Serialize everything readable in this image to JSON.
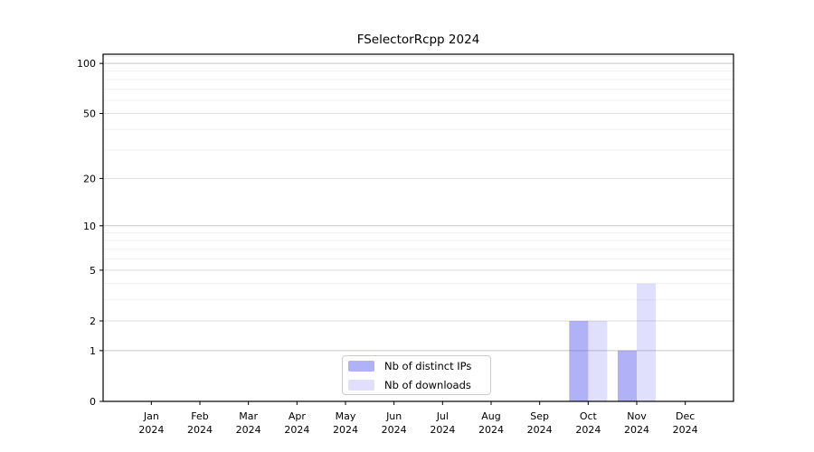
{
  "title": "FSelectorRcpp 2024",
  "colors": {
    "bar_base": "#5252ed",
    "bar_distinct_ips": "rgba(82,82,237,0.45)",
    "bar_downloads": "rgba(82,82,237,0.18)",
    "grid_decade": "#c8c8c8",
    "grid_major": "#dedede",
    "grid_minor": "#f0f0f0",
    "axis": "#000000"
  },
  "chart_data": {
    "type": "bar",
    "title": "FSelectorRcpp 2024",
    "categories": [
      "Jan 2024",
      "Feb 2024",
      "Mar 2024",
      "Apr 2024",
      "May 2024",
      "Jun 2024",
      "Jul 2024",
      "Aug 2024",
      "Sep 2024",
      "Oct 2024",
      "Nov 2024",
      "Dec 2024"
    ],
    "series": [
      {
        "name": "Nb of distinct IPs",
        "values": [
          0,
          0,
          0,
          0,
          0,
          0,
          0,
          0,
          0,
          2,
          1,
          0
        ],
        "color": "rgba(82,82,237,0.45)"
      },
      {
        "name": "Nb of downloads",
        "values": [
          0,
          0,
          0,
          0,
          0,
          0,
          0,
          0,
          0,
          2,
          4,
          0
        ],
        "color": "rgba(82,82,237,0.18)"
      }
    ],
    "xlabel": "",
    "ylabel": "",
    "y_scale": "log1p",
    "y_ticks": [
      0,
      1,
      2,
      5,
      10,
      20,
      50,
      100
    ],
    "y_minor_gridlines": [
      3,
      4,
      6,
      7,
      8,
      9,
      30,
      40,
      60,
      70,
      80,
      90,
      110
    ],
    "ylim": [
      0,
      113.5
    ],
    "grid": true,
    "legend_position": "lower center"
  }
}
